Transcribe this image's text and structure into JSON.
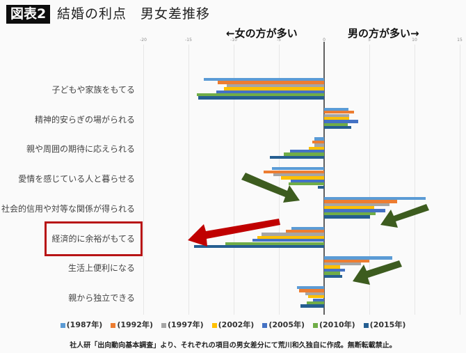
{
  "header": {
    "badge": "図表2",
    "title": "結婚の利点　男女差推移"
  },
  "annotations": {
    "left_label": "←女の方が多い",
    "right_label": "男の方が多い→"
  },
  "legend": [
    {
      "label": "(1987年)",
      "color": "#5b9bd5"
    },
    {
      "label": "(1992年)",
      "color": "#ed7d31"
    },
    {
      "label": "(1997年)",
      "color": "#a5a5a5"
    },
    {
      "label": "(2002年)",
      "color": "#ffc000"
    },
    {
      "label": "(2005年)",
      "color": "#4472c4"
    },
    {
      "label": "(2010年)",
      "color": "#70ad47"
    },
    {
      "label": "(2015年)",
      "color": "#255e91"
    }
  ],
  "footer": "社人研「出向動向基本調査」より、それぞれの項目の男女差分にて荒川和久独自に作成。無断転載禁止。",
  "highlight_color": "#b81416",
  "arrow_color_green": "#3d5c1f",
  "arrow_color_red": "#c00000",
  "chart_data": {
    "type": "bar",
    "orientation": "horizontal",
    "title": "結婚の利点　男女差推移",
    "xlabel": "",
    "ylabel": "",
    "xlim": [
      -20,
      15
    ],
    "x_ticks": [
      -20,
      -15,
      -10,
      -5,
      0,
      5,
      10,
      15
    ],
    "grid": true,
    "legend_position": "bottom",
    "annotations": [
      "←女の方が多い",
      "男の方が多い→"
    ],
    "highlighted_category": "経済的に余裕がもてる",
    "categories": [
      "子どもや家族をもてる",
      "精神的安らぎの場がられる",
      "親や周囲の期待に応えられる",
      "愛情を感じている人と暮らせる",
      "社会的信用や対等な関係が得られる",
      "経済的に余裕がもてる",
      "生活上便利になる",
      "親から独立できる"
    ],
    "series": [
      {
        "name": "(1987年)",
        "color": "#5b9bd5",
        "values": [
          -13.3,
          2.7,
          -1.1,
          -5.8,
          11.2,
          -3.6,
          7.5,
          -3.0
        ]
      },
      {
        "name": "(1992年)",
        "color": "#ed7d31",
        "values": [
          -11.8,
          3.3,
          -1.3,
          -6.7,
          8.1,
          -4.2,
          5.0,
          -2.8
        ]
      },
      {
        "name": "(1997年)",
        "color": "#a5a5a5",
        "values": [
          -10.8,
          2.8,
          -1.1,
          -5.6,
          7.2,
          -6.9,
          4.1,
          -2.1
        ]
      },
      {
        "name": "(2002年)",
        "color": "#ffc000",
        "values": [
          -11.1,
          2.8,
          -1.7,
          -4.8,
          5.5,
          -7.4,
          1.8,
          -1.8
        ]
      },
      {
        "name": "(2005年)",
        "color": "#4472c4",
        "values": [
          -11.9,
          3.8,
          -3.8,
          -3.7,
          6.8,
          -7.9,
          2.3,
          -1.2
        ]
      },
      {
        "name": "(2010年)",
        "color": "#70ad47",
        "values": [
          -14.1,
          2.6,
          -4.5,
          -3.9,
          5.7,
          -10.9,
          1.8,
          -1.9
        ]
      },
      {
        "name": "(2015年)",
        "color": "#255e91",
        "values": [
          -13.9,
          3.0,
          -6.0,
          -0.7,
          5.1,
          -14.4,
          2.0,
          -2.6
        ]
      }
    ]
  }
}
